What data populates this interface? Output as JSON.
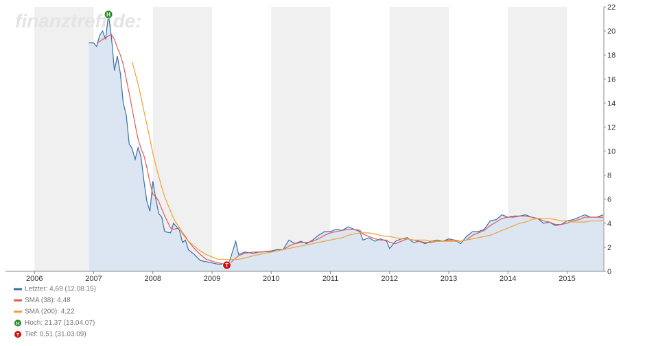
{
  "chart_data": {
    "type": "line",
    "watermark": "finanztreff.de:",
    "x": [
      2006.92,
      2007.0,
      2007.05,
      2007.1,
      2007.15,
      2007.2,
      2007.25,
      2007.3,
      2007.35,
      2007.4,
      2007.45,
      2007.5,
      2007.55,
      2007.6,
      2007.65,
      2007.7,
      2007.75,
      2007.8,
      2007.85,
      2007.9,
      2007.95,
      2008.0,
      2008.05,
      2008.1,
      2008.15,
      2008.2,
      2008.3,
      2008.35,
      2008.45,
      2008.5,
      2008.55,
      2008.6,
      2008.7,
      2008.8,
      2008.9,
      2009.0,
      2009.1,
      2009.25,
      2009.3,
      2009.4,
      2009.45,
      2009.55,
      2009.7,
      2009.8,
      2010.0,
      2010.1,
      2010.2,
      2010.3,
      2010.4,
      2010.5,
      2010.6,
      2010.7,
      2010.8,
      2010.9,
      2011.0,
      2011.1,
      2011.2,
      2011.3,
      2011.4,
      2011.5,
      2011.55,
      2011.65,
      2011.75,
      2011.85,
      2011.95,
      2012.0,
      2012.1,
      2012.2,
      2012.3,
      2012.4,
      2012.5,
      2012.6,
      2012.7,
      2012.8,
      2012.9,
      2013.0,
      2013.1,
      2013.2,
      2013.3,
      2013.4,
      2013.5,
      2013.6,
      2013.7,
      2013.8,
      2013.9,
      2014.0,
      2014.1,
      2014.2,
      2014.3,
      2014.4,
      2014.5,
      2014.6,
      2014.7,
      2014.8,
      2014.9,
      2015.0,
      2015.1,
      2015.2,
      2015.3,
      2015.4,
      2015.5,
      2015.61
    ],
    "series": [
      {
        "name": "Letzter: 4,69 (12.08.15)",
        "color": "#3a6ea5",
        "area": true,
        "values": [
          19.0,
          19.0,
          18.7,
          19.6,
          20.0,
          19.3,
          21.37,
          19.5,
          16.7,
          17.9,
          16.5,
          14.0,
          13.0,
          10.6,
          10.2,
          9.3,
          10.3,
          9.5,
          7.5,
          5.8,
          5.0,
          7.5,
          6.0,
          4.8,
          4.5,
          3.3,
          3.2,
          4.0,
          3.4,
          2.4,
          2.6,
          1.8,
          1.4,
          0.9,
          0.8,
          0.7,
          0.6,
          0.51,
          0.9,
          2.5,
          1.4,
          1.6,
          1.5,
          1.6,
          1.7,
          1.8,
          1.8,
          2.6,
          2.3,
          2.5,
          2.3,
          2.6,
          3.0,
          3.3,
          3.3,
          3.5,
          3.4,
          3.7,
          3.5,
          3.3,
          2.6,
          2.8,
          2.5,
          2.7,
          2.5,
          1.9,
          2.5,
          2.7,
          2.8,
          2.4,
          2.5,
          2.3,
          2.5,
          2.6,
          2.5,
          2.7,
          2.6,
          2.3,
          2.9,
          3.3,
          3.3,
          3.5,
          4.2,
          4.3,
          4.7,
          4.5,
          4.6,
          4.6,
          4.7,
          4.5,
          4.4,
          4.0,
          4.1,
          3.8,
          3.9,
          4.2,
          4.3,
          4.5,
          4.7,
          4.5,
          4.5,
          4.69
        ]
      },
      {
        "name": "SMA (38): 4,48",
        "color": "#e05a5a",
        "values": [
          null,
          null,
          19.0,
          19.1,
          19.3,
          19.4,
          19.6,
          19.7,
          19.3,
          18.6,
          18.0,
          17.2,
          16.0,
          14.8,
          13.5,
          12.2,
          11.0,
          10.2,
          9.6,
          8.6,
          7.4,
          6.4,
          6.2,
          5.8,
          5.2,
          4.6,
          3.6,
          3.5,
          3.6,
          3.2,
          2.9,
          2.5,
          1.9,
          1.4,
          1.0,
          0.85,
          0.7,
          0.6,
          0.65,
          1.1,
          1.3,
          1.5,
          1.6,
          1.6,
          1.65,
          1.7,
          1.8,
          2.1,
          2.3,
          2.4,
          2.4,
          2.5,
          2.7,
          3.0,
          3.2,
          3.3,
          3.4,
          3.5,
          3.5,
          3.4,
          3.1,
          2.9,
          2.7,
          2.6,
          2.6,
          2.4,
          2.3,
          2.5,
          2.7,
          2.6,
          2.5,
          2.4,
          2.4,
          2.5,
          2.5,
          2.6,
          2.6,
          2.5,
          2.6,
          3.0,
          3.2,
          3.4,
          3.8,
          4.1,
          4.4,
          4.5,
          4.5,
          4.6,
          4.6,
          4.5,
          4.4,
          4.2,
          4.1,
          3.9,
          3.9,
          4.0,
          4.2,
          4.3,
          4.5,
          4.5,
          4.5,
          4.48
        ]
      },
      {
        "name": "SMA (200): 4,22",
        "color": "#f0a030",
        "values": [
          null,
          null,
          null,
          null,
          null,
          null,
          null,
          null,
          null,
          null,
          null,
          null,
          null,
          null,
          17.4,
          16.5,
          15.6,
          14.5,
          13.3,
          12.2,
          11.0,
          9.8,
          8.8,
          7.9,
          7.0,
          6.2,
          5.0,
          4.4,
          3.6,
          3.1,
          2.8,
          2.5,
          2.1,
          1.7,
          1.4,
          1.2,
          1.0,
          1.0,
          1.0,
          1.0,
          1.0,
          1.1,
          1.3,
          1.4,
          1.6,
          1.7,
          1.8,
          1.9,
          2.0,
          2.1,
          2.2,
          2.3,
          2.4,
          2.5,
          2.6,
          2.7,
          2.8,
          3.0,
          3.1,
          3.2,
          3.2,
          3.2,
          3.1,
          3.0,
          2.9,
          2.9,
          2.8,
          2.7,
          2.7,
          2.6,
          2.6,
          2.6,
          2.5,
          2.5,
          2.5,
          2.5,
          2.5,
          2.5,
          2.6,
          2.7,
          2.8,
          2.9,
          3.0,
          3.2,
          3.4,
          3.6,
          3.8,
          4.0,
          4.1,
          4.3,
          4.4,
          4.4,
          4.4,
          4.3,
          4.2,
          4.2,
          4.1,
          4.1,
          4.1,
          4.2,
          4.2,
          4.22
        ]
      }
    ],
    "markers": [
      {
        "label": "H",
        "legend": "Hoch: 21,37 (13.04.07)",
        "color": "#2a8a2a",
        "x": 2007.25,
        "y": 21.37
      },
      {
        "label": "T",
        "legend": "Tief: 0,51 (31.03.09)",
        "color": "#d01010",
        "x": 2009.25,
        "y": 0.51
      }
    ],
    "xlim": [
      2005.51,
      2015.62
    ],
    "xticks": [
      2006,
      2007,
      2008,
      2009,
      2010,
      2011,
      2012,
      2013,
      2014,
      2015
    ],
    "ylim": [
      0,
      22
    ],
    "yticks": [
      0,
      2,
      4,
      6,
      8,
      10,
      12,
      14,
      16,
      18,
      20,
      22
    ],
    "year_bands": true
  }
}
